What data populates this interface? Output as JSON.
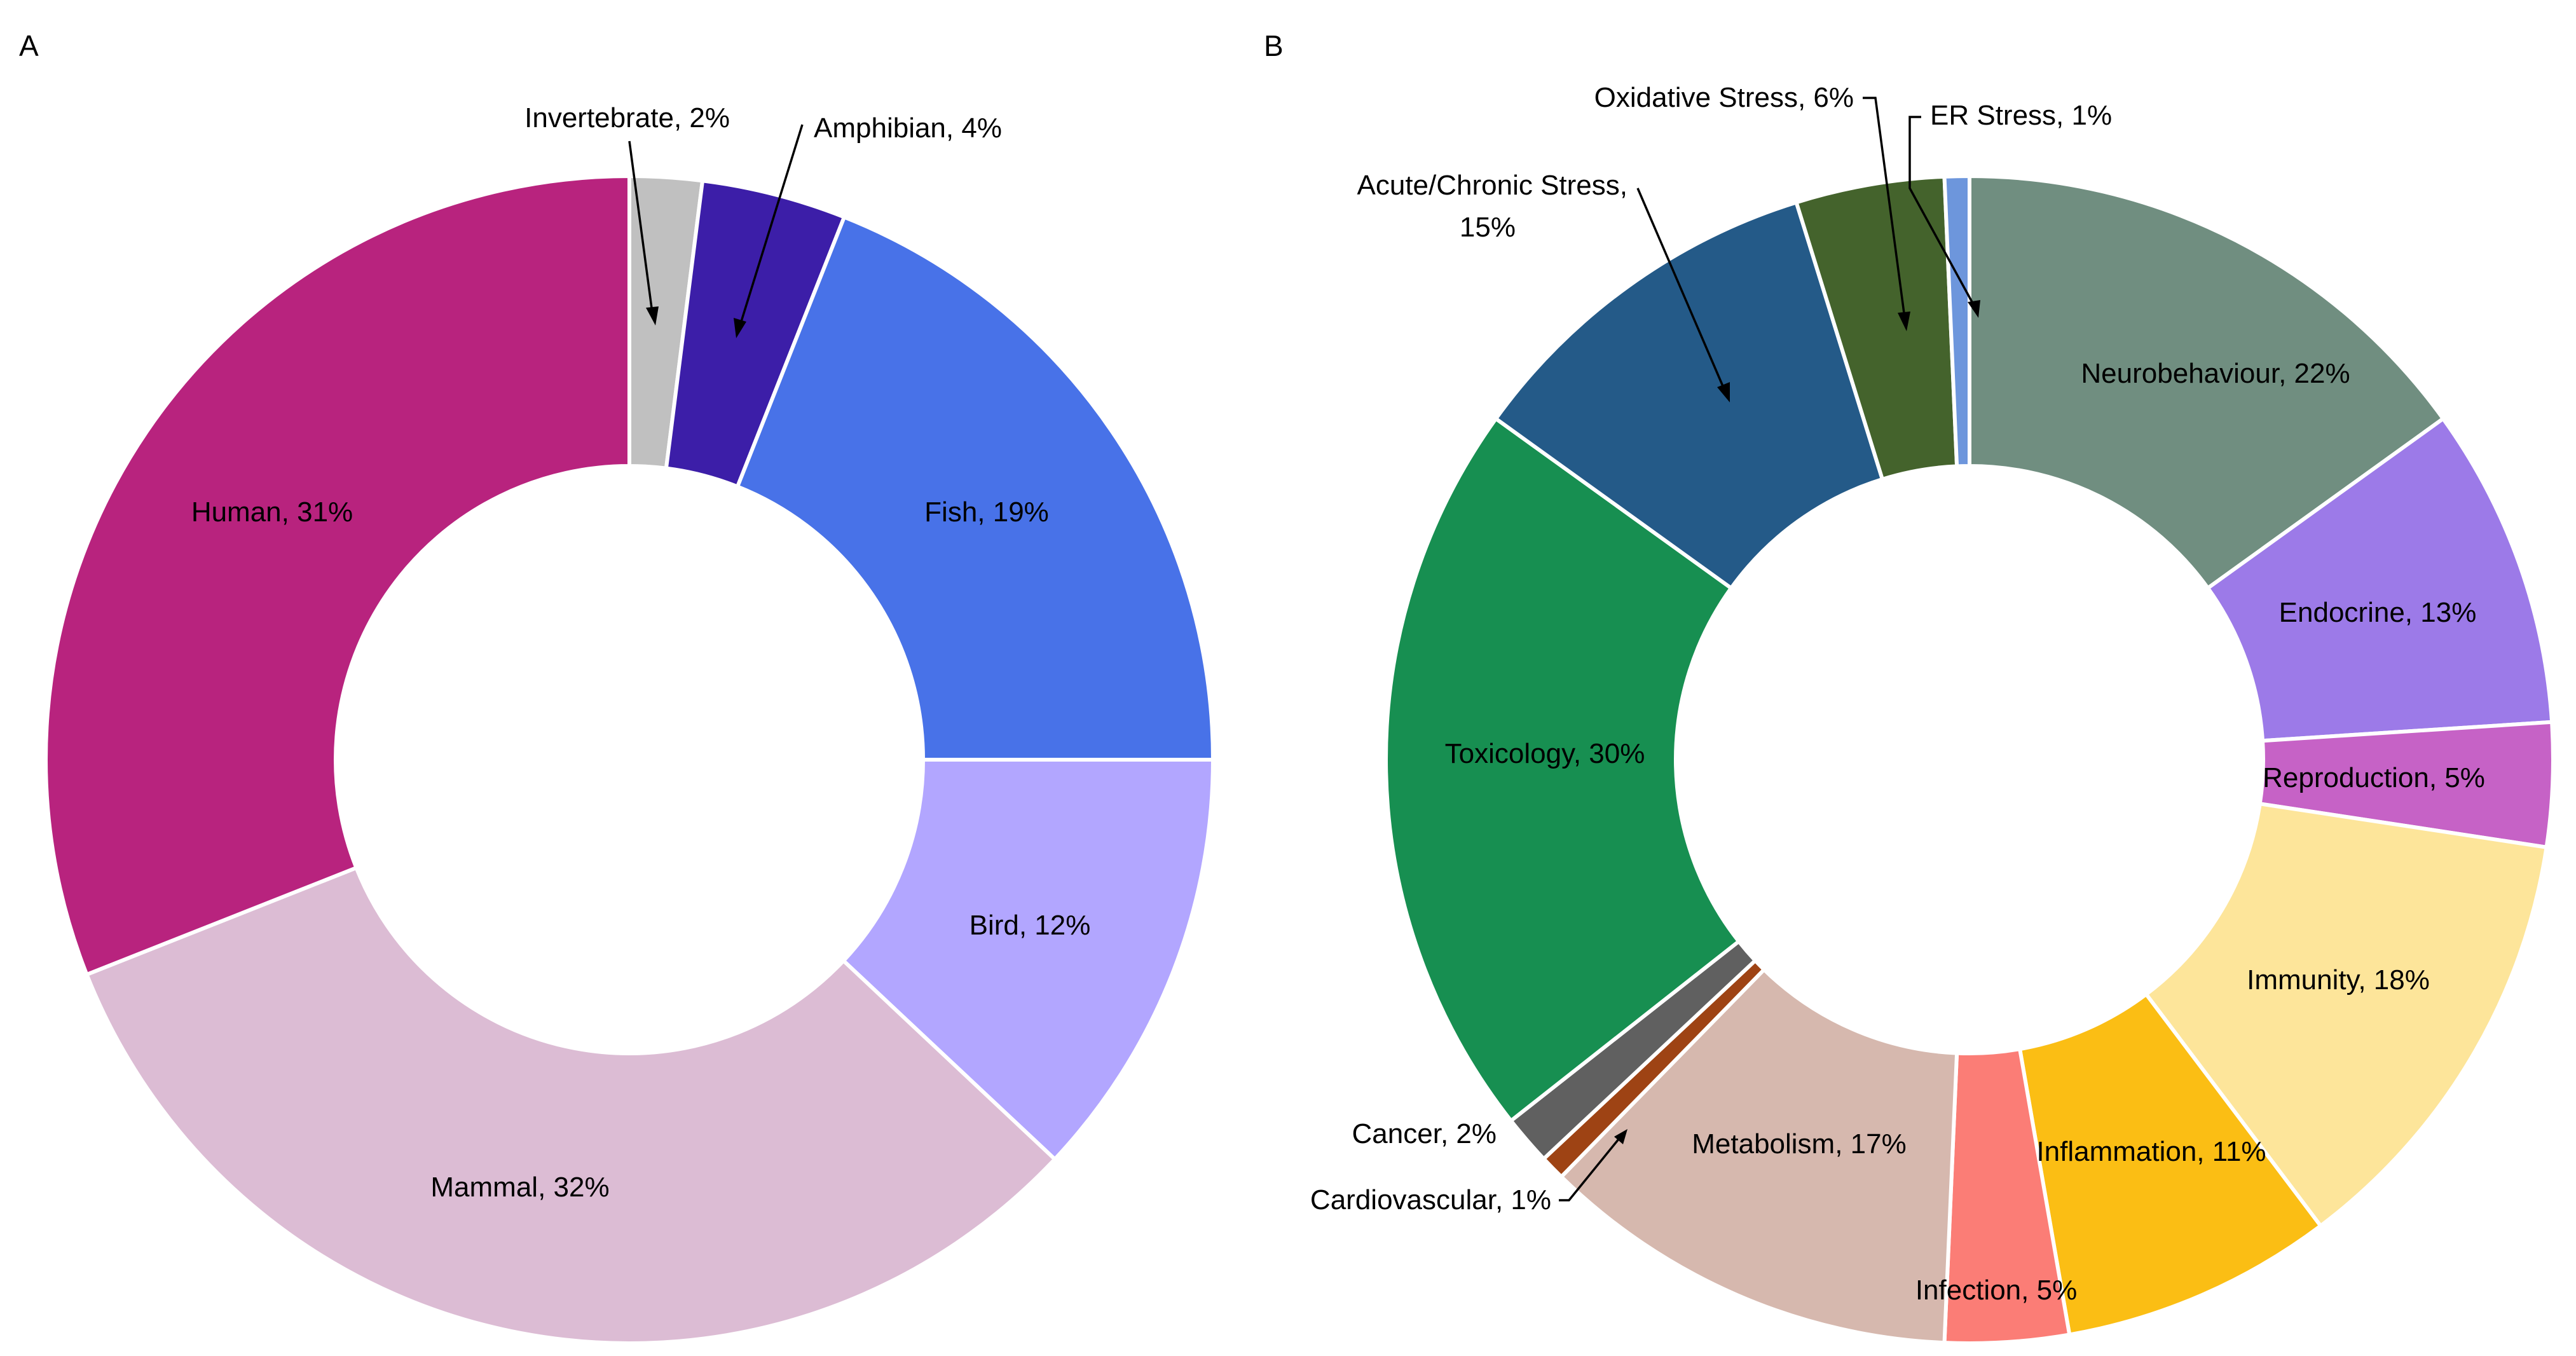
{
  "chart_data": [
    {
      "type": "pie",
      "panel_label": "A",
      "title": "",
      "start_angle_deg": 0,
      "direction": "clockwise",
      "slices": [
        {
          "label": "Invertebrate, 2%",
          "name": "Invertebrate",
          "value": 2,
          "color": "#c0c0c0"
        },
        {
          "label": "Amphibian, 4%",
          "name": "Amphibian",
          "value": 4,
          "color": "#3c1ea8"
        },
        {
          "label": "Fish, 19%",
          "name": "Fish",
          "value": 19,
          "color": "#4872e8"
        },
        {
          "label": "Bird, 12%",
          "name": "Bird",
          "value": 12,
          "color": "#b2a6ff"
        },
        {
          "label": "Mammal, 32%",
          "name": "Mammal",
          "value": 32,
          "color": "#dcbcd4"
        },
        {
          "label": "Human, 31%",
          "name": "Human",
          "value": 31,
          "color": "#b8237e"
        }
      ]
    },
    {
      "type": "pie",
      "panel_label": "B",
      "title": "",
      "start_angle_deg": 0,
      "direction": "clockwise",
      "slices": [
        {
          "label": "Neurobehaviour, 22%",
          "name": "Neurobehaviour",
          "value": 22,
          "color": "#708e80"
        },
        {
          "label": "Endocrine, 13%",
          "name": "Endocrine",
          "value": 13,
          "color": "#9c7ae8"
        },
        {
          "label": "Reproduction, 5%",
          "name": "Reproduction",
          "value": 5,
          "color": "#c662c6"
        },
        {
          "label": "Immunity, 18%",
          "name": "Immunity",
          "value": 18,
          "color": "#fde59a"
        },
        {
          "label": "Inflammation, 11%",
          "name": "Inflammation",
          "value": 11,
          "color": "#fbbe14"
        },
        {
          "label": "Infection, 5%",
          "name": "Infection",
          "value": 5,
          "color": "#fb7d76"
        },
        {
          "label": "Metabolism, 17%",
          "name": "Metabolism",
          "value": 17,
          "color": "#d6b8ae"
        },
        {
          "label": "Cardiovascular, 1%",
          "name": "Cardiovascular",
          "value": 1,
          "color": "#9e4314"
        },
        {
          "label": "Cancer, 2%",
          "name": "Cancer",
          "value": 2,
          "color": "#606060"
        },
        {
          "label": "Toxicology, 30%",
          "name": "Toxicology",
          "value": 30,
          "color": "#178f51"
        },
        {
          "label": "Acute/Chronic Stress,",
          "label_line2": "15%",
          "name": "Acute/Chronic Stress",
          "value": 15,
          "color": "#245a88"
        },
        {
          "label": "Oxidative Stress, 6%",
          "name": "Oxidative Stress",
          "value": 6,
          "color": "#44632c"
        },
        {
          "label": "ER Stress, 1%",
          "name": "ER Stress",
          "value": 1,
          "color": "#6d96dc"
        }
      ]
    }
  ]
}
